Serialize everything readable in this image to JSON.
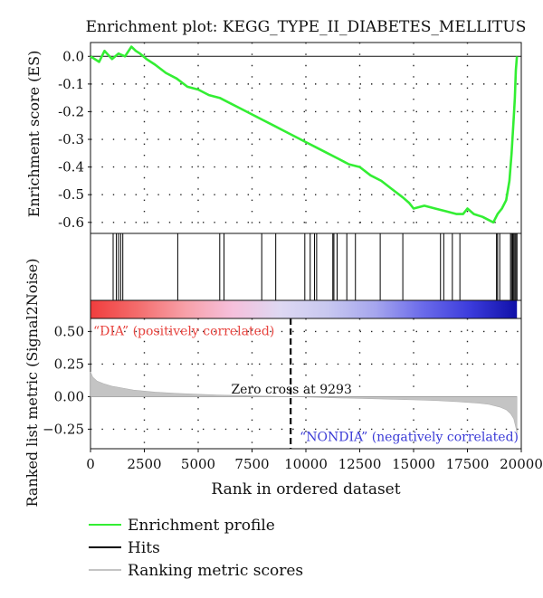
{
  "chart_data": {
    "type": "line",
    "title": "Enrichment plot: KEGG_TYPE_II_DIABETES_MELLITUS",
    "xlabel": "Rank in ordered dataset",
    "xlim": [
      0,
      20000
    ],
    "x_ticks": [
      0,
      2500,
      5000,
      7500,
      10000,
      12500,
      15000,
      17500,
      20000
    ],
    "x_tick_labels": [
      "0",
      "2500",
      "5000",
      "7500",
      "10000",
      "12500",
      "15000",
      "17500",
      "20000"
    ],
    "grid": true,
    "es_panel": {
      "ylabel": "Enrichment score (ES)",
      "ylim": [
        -0.64,
        0.05
      ],
      "y_ticks": [
        0.0,
        -0.1,
        -0.2,
        -0.3,
        -0.4,
        -0.5,
        -0.6
      ],
      "y_tick_labels": [
        "0.0",
        "-0.1",
        "-0.2",
        "-0.3",
        "-0.4",
        "-0.5",
        "-0.6"
      ],
      "series": [
        {
          "name": "Enrichment profile",
          "color": "#33ee33",
          "x": [
            0,
            400,
            650,
            1000,
            1300,
            1600,
            1900,
            2100,
            2300,
            2600,
            3000,
            3500,
            4000,
            4500,
            5000,
            5500,
            6000,
            6500,
            7000,
            7500,
            8000,
            8500,
            9000,
            9500,
            10000,
            10500,
            11000,
            11500,
            12000,
            12500,
            13000,
            13500,
            14000,
            14500,
            14800,
            15000,
            15500,
            16000,
            16500,
            17000,
            17300,
            17500,
            17800,
            18200,
            18700,
            18900,
            19100,
            19300,
            19450,
            19550,
            19650,
            19700,
            19750,
            19800
          ],
          "y": [
            0.0,
            -0.02,
            0.02,
            -0.01,
            0.01,
            0.0,
            0.035,
            0.02,
            0.01,
            -0.01,
            -0.03,
            -0.06,
            -0.08,
            -0.11,
            -0.12,
            -0.14,
            -0.15,
            -0.17,
            -0.19,
            -0.21,
            -0.23,
            -0.25,
            -0.27,
            -0.29,
            -0.31,
            -0.33,
            -0.35,
            -0.37,
            -0.39,
            -0.4,
            -0.43,
            -0.45,
            -0.48,
            -0.51,
            -0.53,
            -0.55,
            -0.54,
            -0.55,
            -0.56,
            -0.57,
            -0.57,
            -0.55,
            -0.57,
            -0.58,
            -0.6,
            -0.57,
            -0.55,
            -0.52,
            -0.45,
            -0.35,
            -0.22,
            -0.15,
            -0.05,
            0.0
          ]
        }
      ]
    },
    "hits_panel": {
      "legend_label": "Hits",
      "color": "#000000",
      "hits": [
        1050,
        1200,
        1300,
        1400,
        1500,
        4050,
        6000,
        6200,
        7950,
        8600,
        9950,
        10200,
        10400,
        10500,
        11250,
        11300,
        11450,
        11900,
        12300,
        13450,
        14500,
        16250,
        16400,
        16800,
        17150,
        18850,
        18900,
        19000,
        19500,
        19550,
        19600,
        19650,
        19700,
        19750,
        19800
      ]
    },
    "ranking_panel": {
      "ylabel": "Ranked list metric (Signal2Noise)",
      "ylim": [
        -0.4,
        0.6
      ],
      "y_ticks": [
        0.5,
        0.25,
        0.0,
        -0.25
      ],
      "y_tick_labels": [
        "0.50",
        "0.25",
        "0.00",
        "−0.25"
      ],
      "legend_label": "Ranking metric scores",
      "fill_color": "#c4c4c4",
      "zero_cross_x": 9293,
      "zero_cross_label": "Zero cross at 9293",
      "pos_label": "“DIA” (positively correlated)",
      "pos_color": "#e8443f",
      "neg_label": "“NONDIA” (negatively correlated)",
      "neg_color": "#3b3bd6",
      "metric_x": [
        0,
        100,
        300,
        600,
        1000,
        1500,
        2000,
        3000,
        4000,
        5000,
        6000,
        7000,
        8000,
        9293,
        10000,
        11000,
        12000,
        13000,
        14000,
        15000,
        16000,
        17000,
        18000,
        18500,
        19000,
        19300,
        19500,
        19650,
        19780,
        19800
      ],
      "metric_y": [
        0.19,
        0.15,
        0.12,
        0.1,
        0.08,
        0.065,
        0.05,
        0.035,
        0.025,
        0.018,
        0.012,
        0.008,
        0.004,
        0.0,
        -0.003,
        -0.008,
        -0.012,
        -0.016,
        -0.02,
        -0.025,
        -0.03,
        -0.038,
        -0.05,
        -0.06,
        -0.08,
        -0.1,
        -0.13,
        -0.17,
        -0.26,
        -0.29
      ]
    },
    "gradient_stops": [
      "#f03d3d",
      "#f46d6d",
      "#f7a0a8",
      "#f6c0dc",
      "#ded8f2",
      "#c8c8f0",
      "#a6a6ee",
      "#6b6bea",
      "#3c3cdc",
      "#1010a8"
    ],
    "legend": [
      {
        "label": "Enrichment profile",
        "color": "#33ee33"
      },
      {
        "label": "Hits",
        "color": "#000000"
      },
      {
        "label": "Ranking metric scores",
        "color": "#c4c4c4"
      }
    ]
  }
}
